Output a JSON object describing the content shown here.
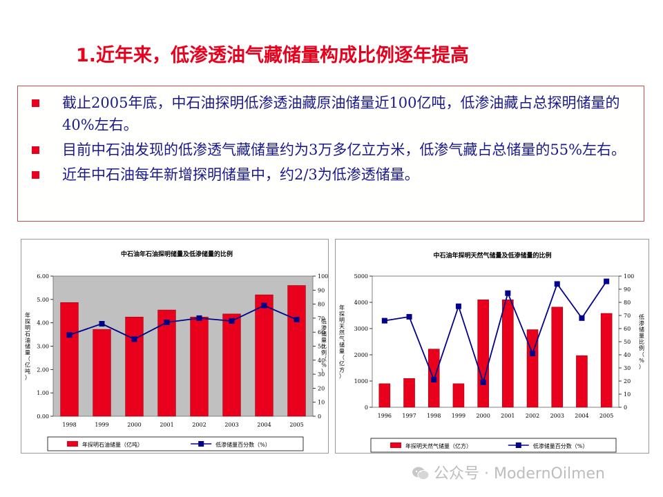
{
  "slide": {
    "title": "1.近年来，低渗透油气藏储量构成比例逐年提高",
    "bullets": [
      "截止2005年底，中石油探明低渗透油藏原油储量近100亿吨，低渗油藏占总探明储量的40%左右。",
      "目前中石油发现的低渗透气藏储量约为3万多亿立方米，低渗气藏占总储量的55%左右。",
      "近年中石油每年新增探明储量中，约2/3为低渗透储量。"
    ],
    "bullet_color": "#e8001c",
    "title_color": "#e8001c",
    "text_color": "#1a1a8c"
  },
  "watermark": {
    "icon": "wechat-icon",
    "text": "公众号 · ModernOilmen"
  },
  "chart_data": [
    {
      "type": "bar+line",
      "title": "中石油年石油探明储量及低渗储量的比例",
      "categories": [
        "1998",
        "1999",
        "2000",
        "2001",
        "2002",
        "2003",
        "2004",
        "2005"
      ],
      "bar_series": {
        "name": "年探明石油储量（亿吨）",
        "values": [
          4.87,
          3.72,
          4.25,
          4.55,
          4.25,
          4.38,
          5.2,
          5.6
        ],
        "color": "#e8001c"
      },
      "line_series": {
        "name": "低渗储量百分数（%）",
        "values": [
          58,
          66,
          55,
          67,
          70,
          68,
          79,
          69
        ],
        "color": "#00008b"
      },
      "ylabel_left": "年探明石油储量（亿吨）",
      "ylabel_right": "低渗储量比例（%）",
      "ylim_left": [
        0,
        6
      ],
      "yticks_left": [
        "0.00",
        "1.00",
        "2.00",
        "3.00",
        "4.00",
        "5.00",
        "6.00"
      ],
      "ylim_right": [
        0,
        100
      ],
      "yticks_right": [
        "0",
        "10",
        "20",
        "30",
        "40",
        "50",
        "60",
        "70",
        "80",
        "90",
        "100"
      ],
      "plot_bg": "#c0c0c0",
      "legend_position": "bottom"
    },
    {
      "type": "bar+line",
      "title": "中石油年探明天然气储量及低渗储量的比例",
      "categories": [
        "1996",
        "1997",
        "1998",
        "1999",
        "2000",
        "2001",
        "2002",
        "2003",
        "2004",
        "2005"
      ],
      "bar_series": {
        "name": "年探明天然气储量（亿方）",
        "values": [
          900,
          1100,
          2220,
          900,
          4100,
          4100,
          2960,
          3820,
          1970,
          3580
        ],
        "color": "#e8001c"
      },
      "line_series": {
        "name": "低渗储量百分数（%）",
        "values": [
          66,
          69,
          21,
          77,
          19,
          87,
          41,
          94,
          68,
          96
        ],
        "color": "#00008b"
      },
      "ylabel_left": "年探明天然气储量（亿方）",
      "ylabel_right": "低渗储量比例（%）",
      "ylim_left": [
        0,
        5000
      ],
      "yticks_left": [
        "0",
        "1000",
        "2000",
        "3000",
        "4000",
        "5000"
      ],
      "ylim_right": [
        0,
        100
      ],
      "yticks_right": [
        "0",
        "10",
        "20",
        "30",
        "40",
        "50",
        "60",
        "70",
        "80",
        "90",
        "100"
      ],
      "plot_bg": "#ffffff",
      "legend_position": "bottom"
    }
  ]
}
